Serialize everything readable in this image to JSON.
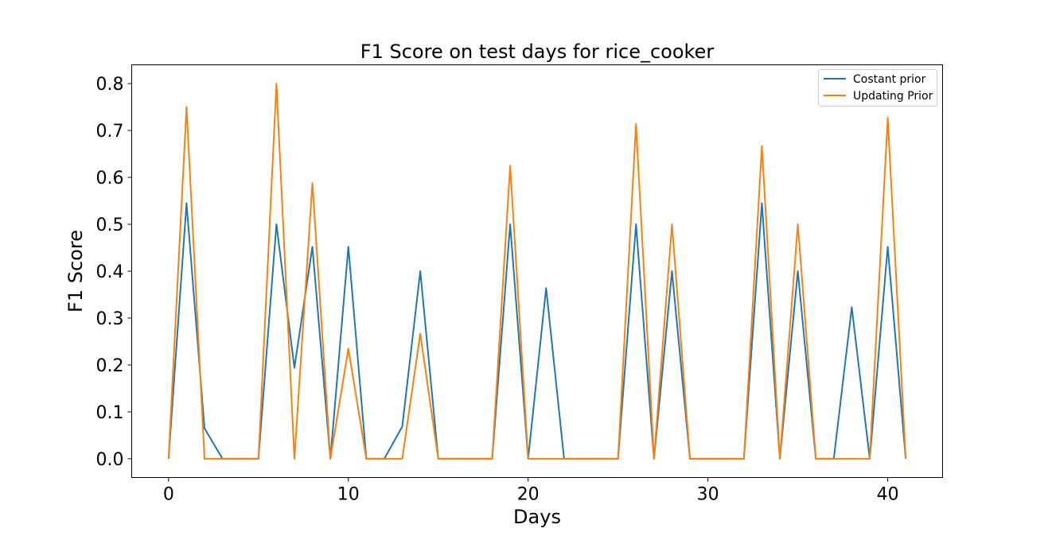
{
  "chart_data": {
    "type": "line",
    "title": "F1 Score on test days for rice_cooker",
    "xlabel": "Days",
    "ylabel": "F1 Score",
    "xlim": [
      -2.05,
      43.05
    ],
    "ylim": [
      -0.04,
      0.84
    ],
    "xticks": [
      0,
      10,
      20,
      30,
      40
    ],
    "yticks": [
      0.0,
      0.1,
      0.2,
      0.3,
      0.4,
      0.5,
      0.6,
      0.7,
      0.8
    ],
    "xtick_labels": [
      "0",
      "10",
      "20",
      "30",
      "40"
    ],
    "ytick_labels": [
      "0.0",
      "0.1",
      "0.2",
      "0.3",
      "0.4",
      "0.5",
      "0.6",
      "0.7",
      "0.8"
    ],
    "grid": false,
    "legend_position": "top-right",
    "x": [
      0,
      1,
      2,
      3,
      4,
      5,
      6,
      7,
      8,
      9,
      10,
      11,
      12,
      13,
      14,
      15,
      16,
      17,
      18,
      19,
      20,
      21,
      22,
      23,
      24,
      25,
      26,
      27,
      28,
      29,
      30,
      31,
      32,
      33,
      34,
      35,
      36,
      37,
      38,
      39,
      40,
      41
    ],
    "series": [
      {
        "name": "Costant prior",
        "color": "#1f77b4",
        "values": [
          0,
          0.545,
          0.065,
          0,
          0,
          0,
          0.5,
          0.194,
          0.452,
          0,
          0.452,
          0,
          0,
          0.069,
          0.4,
          0,
          0,
          0,
          0,
          0.5,
          0,
          0.364,
          0,
          0,
          0,
          0,
          0.5,
          0,
          0.4,
          0,
          0,
          0,
          0,
          0.545,
          0,
          0.4,
          0,
          0,
          0.323,
          0,
          0.452,
          0
        ]
      },
      {
        "name": "Updating Prior",
        "color": "#ff7f0e",
        "values": [
          0,
          0.75,
          0,
          0,
          0,
          0,
          0.8,
          0,
          0.588,
          0,
          0.235,
          0,
          0,
          0,
          0.267,
          0,
          0,
          0,
          0,
          0.625,
          0,
          0,
          0,
          0,
          0,
          0,
          0.714,
          0,
          0.5,
          0,
          0,
          0,
          0,
          0.667,
          0,
          0.5,
          0,
          0,
          0,
          0,
          0.727,
          0
        ]
      }
    ]
  }
}
